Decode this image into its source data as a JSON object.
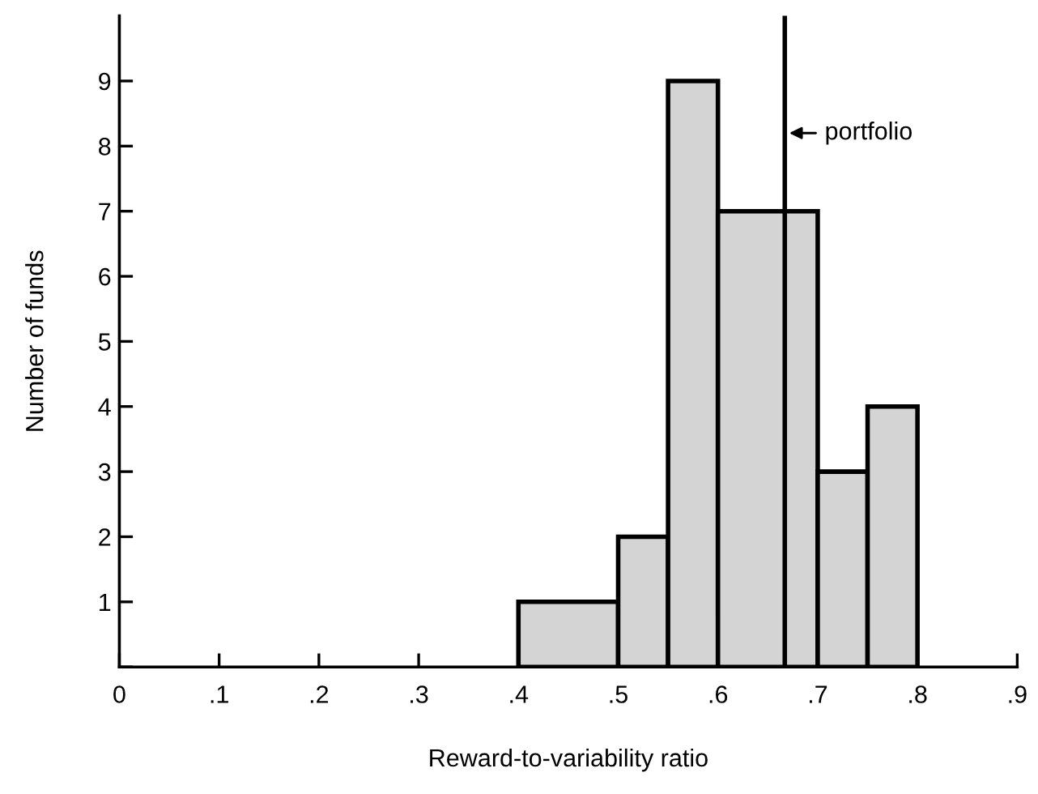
{
  "chart_data": {
    "type": "histogram",
    "xlabel": "Reward-to-variability ratio",
    "ylabel": "Number of funds",
    "bins": [
      0.4,
      0.5,
      0.55,
      0.6,
      0.7,
      0.75,
      0.8
    ],
    "values": [
      1,
      2,
      9,
      7,
      3,
      4
    ],
    "color": "#d4d4d4",
    "xlim": [
      0,
      0.9
    ],
    "ylim": [
      0,
      10
    ],
    "xticks": [
      0,
      {
        "value": 0.1,
        "label": ".1"
      },
      {
        "value": 0.2,
        "label": ".2"
      },
      {
        "value": 0.3,
        "label": ".3"
      },
      {
        "value": 0.4,
        "label": ".4"
      },
      {
        "value": 0.5,
        "label": ".5"
      },
      {
        "value": 0.6,
        "label": ".6"
      },
      {
        "value": 0.7,
        "label": ".7"
      },
      {
        "value": 0.8,
        "label": ".8"
      },
      {
        "value": 0.9,
        "label": ".9"
      }
    ],
    "yticks": [
      {
        "value": 0,
        "label": null
      },
      1,
      2,
      3,
      4,
      5,
      6,
      7,
      8,
      9
    ],
    "ref_lines": [
      {
        "axis": "x",
        "value": 0.667,
        "label": "portfolio",
        "color": "#000000"
      }
    ],
    "grid": false
  }
}
